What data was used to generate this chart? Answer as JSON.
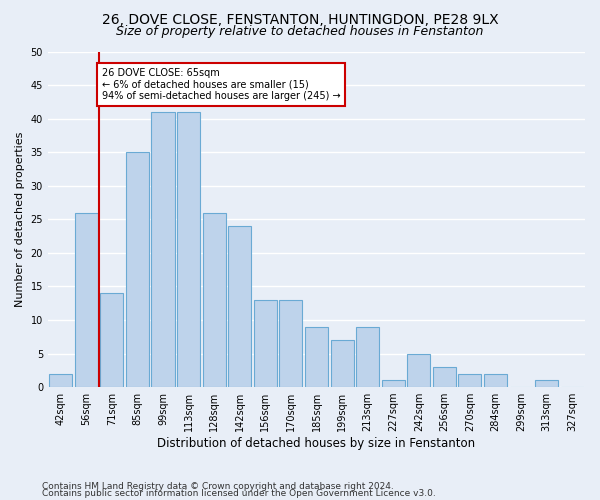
{
  "title1": "26, DOVE CLOSE, FENSTANTON, HUNTINGDON, PE28 9LX",
  "title2": "Size of property relative to detached houses in Fenstanton",
  "xlabel": "Distribution of detached houses by size in Fenstanton",
  "ylabel": "Number of detached properties",
  "bar_labels": [
    "42sqm",
    "56sqm",
    "71sqm",
    "85sqm",
    "99sqm",
    "113sqm",
    "128sqm",
    "142sqm",
    "156sqm",
    "170sqm",
    "185sqm",
    "199sqm",
    "213sqm",
    "227sqm",
    "242sqm",
    "256sqm",
    "270sqm",
    "284sqm",
    "299sqm",
    "313sqm",
    "327sqm"
  ],
  "bar_values": [
    2,
    26,
    14,
    35,
    41,
    41,
    26,
    24,
    13,
    13,
    9,
    7,
    9,
    1,
    5,
    3,
    2,
    2,
    0,
    1,
    0
  ],
  "bar_color": "#bed3eb",
  "bar_edgecolor": "#6aaad4",
  "vline_color": "#cc0000",
  "annotation_text": "26 DOVE CLOSE: 65sqm\n← 6% of detached houses are smaller (15)\n94% of semi-detached houses are larger (245) →",
  "annotation_box_color": "#ffffff",
  "annotation_box_edgecolor": "#cc0000",
  "ylim": [
    0,
    50
  ],
  "yticks": [
    0,
    5,
    10,
    15,
    20,
    25,
    30,
    35,
    40,
    45,
    50
  ],
  "footer1": "Contains HM Land Registry data © Crown copyright and database right 2024.",
  "footer2": "Contains public sector information licensed under the Open Government Licence v3.0.",
  "bg_color": "#e8eef7",
  "plot_bg_color": "#e8eef7",
  "grid_color": "#ffffff",
  "title1_fontsize": 10,
  "title2_fontsize": 9,
  "ylabel_fontsize": 8,
  "xlabel_fontsize": 8.5,
  "tick_fontsize": 7,
  "footer_fontsize": 6.5
}
